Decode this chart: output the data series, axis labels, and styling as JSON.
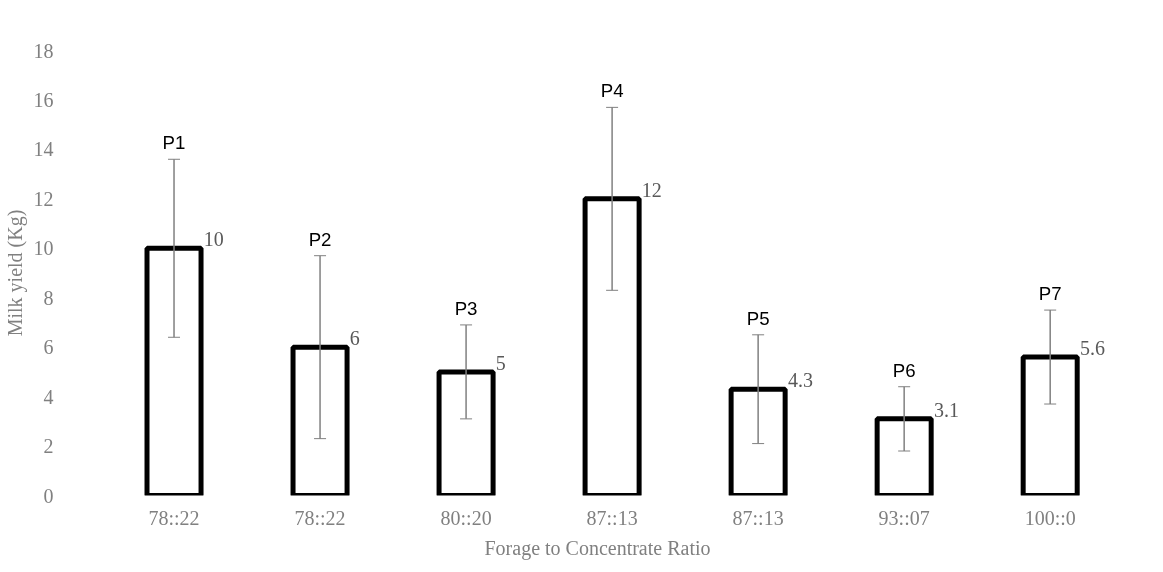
{
  "chart_data": {
    "type": "bar",
    "xlabel": "Forage to Concentrate Ratio",
    "ylabel": "Milk yield (Kg)",
    "categories": [
      "78::22",
      "78::22",
      "80::20",
      "87::13",
      "87::13",
      "93::07",
      "100::0"
    ],
    "values": [
      10,
      6,
      5,
      12,
      4.3,
      3.1,
      5.6
    ],
    "errors": [
      3.6,
      3.7,
      1.9,
      3.7,
      2.2,
      1.3,
      1.9
    ],
    "color": "#000000",
    "data_labels": true,
    "annotations": [
      "P1",
      "P2",
      "P3",
      "P4",
      "P5",
      "P6",
      "P7"
    ],
    "ylim": [
      0,
      18
    ],
    "yticks": [
      0,
      2,
      4,
      6,
      8,
      10,
      12,
      14,
      16,
      18
    ],
    "grid": false
  }
}
